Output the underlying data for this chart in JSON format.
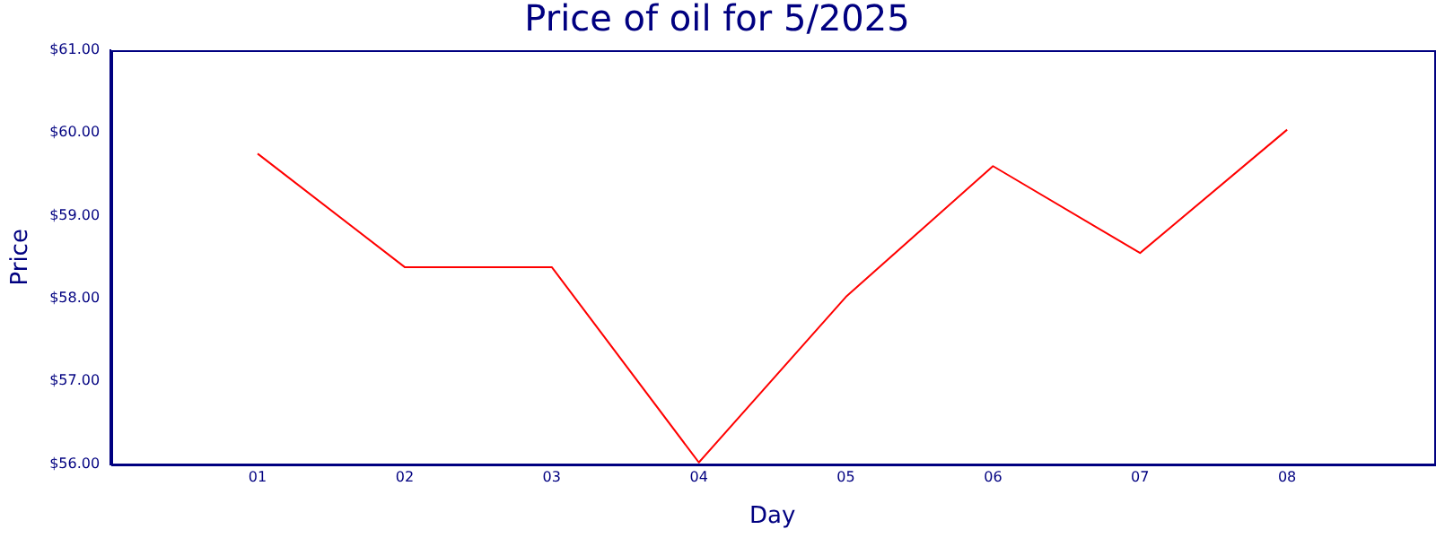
{
  "chart_data": {
    "type": "line",
    "title": "Price of oil for 5/2025",
    "xlabel": "Day",
    "ylabel": "Price",
    "x": [
      1,
      2,
      3,
      4,
      5,
      6,
      7,
      8
    ],
    "series": [
      {
        "color": "#ff0000",
        "values": [
          59.75,
          58.38,
          58.38,
          56.02,
          58.02,
          59.6,
          58.55,
          60.04
        ]
      }
    ],
    "xlim": [
      0,
      9
    ],
    "xticks": [
      {
        "value": 1,
        "label": "01"
      },
      {
        "value": 2,
        "label": "02"
      },
      {
        "value": 3,
        "label": "03"
      },
      {
        "value": 4,
        "label": "04"
      },
      {
        "value": 5,
        "label": "05"
      },
      {
        "value": 6,
        "label": "06"
      },
      {
        "value": 7,
        "label": "07"
      },
      {
        "value": 8,
        "label": "08"
      }
    ],
    "ylim": [
      56,
      61
    ],
    "yticks": [
      {
        "value": 56,
        "label": "$56.00"
      },
      {
        "value": 57,
        "label": "$57.00"
      },
      {
        "value": 58,
        "label": "$58.00"
      },
      {
        "value": 59,
        "label": "$59.00"
      },
      {
        "value": 60,
        "label": "$60.00"
      },
      {
        "value": 61,
        "label": "$61.00"
      }
    ],
    "grid": false,
    "legend": false,
    "marker": "none",
    "line_style": "solid"
  }
}
